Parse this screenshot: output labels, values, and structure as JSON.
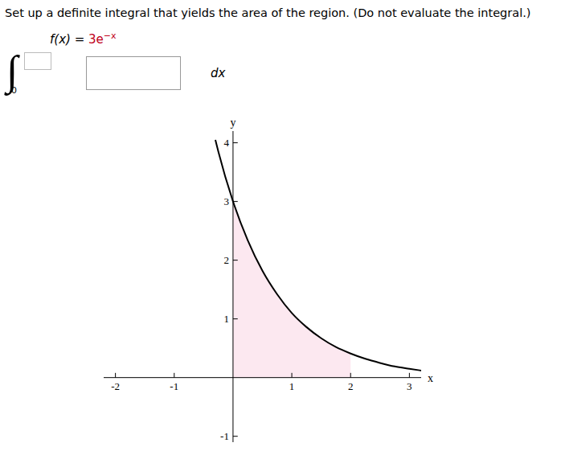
{
  "question": "Set up a definite integral that yields the area of the region. (Do not evaluate the integral.)",
  "function_label": "f(x) =",
  "function_expr": {
    "base": "3e",
    "exponent": "−x"
  },
  "integral_sign": "∫",
  "integral_lower": 0,
  "differential": "dx",
  "chart_data": {
    "type": "line",
    "xlabel": "x",
    "ylabel": "y",
    "x": [
      -0.3,
      -0.25,
      0,
      0.25,
      0.5,
      0.75,
      1,
      1.25,
      1.5,
      1.75,
      2,
      2.25,
      2.5,
      2.75,
      3,
      3.2
    ],
    "values": [
      4.05,
      3.85,
      3,
      2.34,
      1.82,
      1.42,
      1.1,
      0.86,
      0.67,
      0.52,
      0.41,
      0.32,
      0.25,
      0.19,
      0.15,
      0.12
    ],
    "color": "#000000",
    "region": {
      "xlim": [
        0,
        2
      ],
      "color": "#fce8f0"
    },
    "xlim": [
      -2.2,
      3.2
    ],
    "ylim": [
      -1.1,
      4.2
    ],
    "xticks": [
      -2,
      -1,
      1,
      2,
      3
    ],
    "yticks": [
      -1,
      1,
      2,
      3,
      4
    ],
    "grid": false
  }
}
